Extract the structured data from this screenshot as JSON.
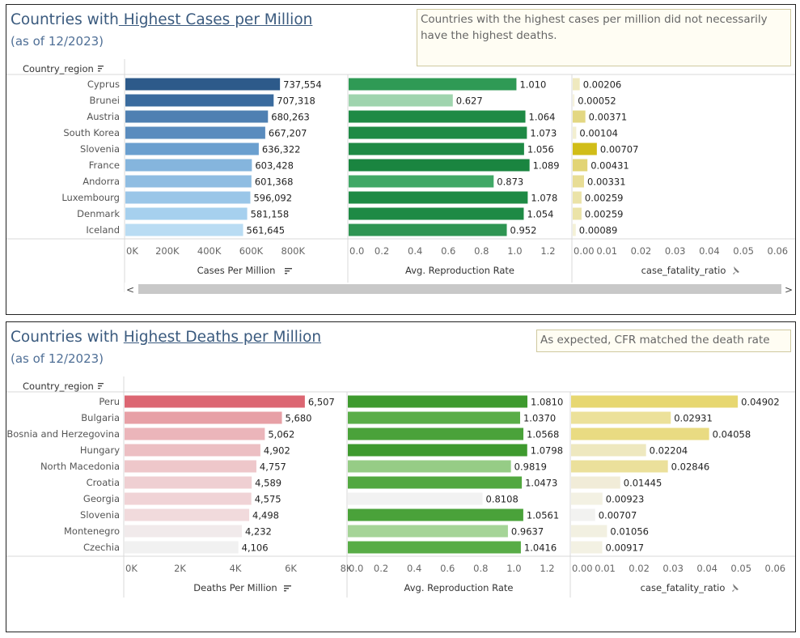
{
  "panels": [
    {
      "title_plain": "Countries with",
      "title_link": " Highest Cases per Million",
      "subtitle": "(as of 12/2023)",
      "note": "Countries with the highest cases per million did not necessarily have the highest deaths.",
      "row_header": "Country_region",
      "scrollbar": {
        "left_arrow": "<",
        "right_arrow": ">"
      }
    },
    {
      "title_plain": "Countries with",
      "title_link": "Highest Deaths per Million",
      "subtitle": "(as of 12/2023)",
      "note": "As expected, CFR matched the death rate",
      "row_header": "Country_region"
    }
  ],
  "chart_data": [
    {
      "type": "bar",
      "orientation": "horizontal",
      "categories": [
        "Cyprus",
        "Brunei",
        "Austria",
        "South Korea",
        "Slovenia",
        "France",
        "Andorra",
        "Luxembourg",
        "Denmark",
        "Iceland"
      ],
      "series": [
        {
          "name": "Cases Per Million",
          "axis_label": "Cases Per Million",
          "values": [
            737554,
            707318,
            680263,
            667207,
            636322,
            603428,
            601368,
            596092,
            581158,
            561645
          ],
          "labels": [
            "737,554",
            "707,318",
            "680,263",
            "667,207",
            "636,322",
            "603,428",
            "601,368",
            "596,092",
            "581,158",
            "561,645"
          ],
          "ticks": [
            "0K",
            "200K",
            "400K",
            "600K",
            "800K"
          ],
          "tick_values": [
            0,
            200000,
            400000,
            600000,
            800000
          ],
          "xlim": [
            0,
            930000
          ],
          "colors": [
            "#2d5a8a",
            "#3a6b9e",
            "#4f80b2",
            "#5a8cbe",
            "#6a9fcf",
            "#85b5dd",
            "#8fbde2",
            "#9ac6e8",
            "#a6d0ee",
            "#b9dcf3"
          ],
          "sort_icon": true
        },
        {
          "name": "Avg. Reproduction Rate",
          "axis_label": "Avg. Reproduction Rate",
          "values": [
            1.01,
            0.627,
            1.064,
            1.073,
            1.056,
            1.089,
            0.873,
            1.078,
            1.054,
            0.952
          ],
          "labels": [
            "1.010",
            "0.627",
            "1.064",
            "1.073",
            "1.056",
            "1.089",
            "0.873",
            "1.078",
            "1.054",
            "0.952"
          ],
          "ticks": [
            "0.0",
            "0.2",
            "0.4",
            "0.6",
            "0.8",
            "1.0",
            "1.2"
          ],
          "tick_values": [
            0,
            0.2,
            0.4,
            0.6,
            0.8,
            1.0,
            1.2
          ],
          "xlim": [
            0,
            1.3
          ],
          "colors": [
            "#2f9a55",
            "#9fd4ae",
            "#1e8a45",
            "#1e8a45",
            "#1e8a45",
            "#1a8540",
            "#40a866",
            "#1e8a45",
            "#1e8a45",
            "#2e9552"
          ]
        },
        {
          "name": "case_fatality_ratio",
          "axis_label": "case_fatality_ratio",
          "values": [
            0.00206,
            0.00052,
            0.00371,
            0.00104,
            0.00707,
            0.00431,
            0.00331,
            0.00259,
            0.00259,
            0.00089
          ],
          "labels": [
            "0.00206",
            "0.00052",
            "0.00371",
            "0.00104",
            "0.00707",
            "0.00431",
            "0.00331",
            "0.00259",
            "0.00259",
            "0.00089"
          ],
          "ticks": [
            "0.00",
            "0.01",
            "0.02",
            "0.03",
            "0.04",
            "0.05",
            "0.06"
          ],
          "tick_values": [
            0,
            0.01,
            0.02,
            0.03,
            0.04,
            0.05,
            0.06
          ],
          "xlim": [
            0,
            0.063
          ],
          "colors": [
            "#efe9bf",
            "#f5f2dc",
            "#e3d782",
            "#f3efd0",
            "#d1bd18",
            "#e2d475",
            "#e8dd95",
            "#ebe3a8",
            "#ebe3a8",
            "#f4f1d6"
          ],
          "pin_icon": true
        }
      ]
    },
    {
      "type": "bar",
      "orientation": "horizontal",
      "categories": [
        "Peru",
        "Bulgaria",
        "Bosnia and Herzegovina",
        "Hungary",
        "North Macedonia",
        "Croatia",
        "Georgia",
        "Slovenia",
        "Montenegro",
        "Czechia"
      ],
      "series": [
        {
          "name": "Deaths Per Million",
          "axis_label": "Deaths Per Million",
          "values": [
            6507,
            5680,
            5062,
            4902,
            4757,
            4589,
            4575,
            4498,
            4232,
            4106
          ],
          "labels": [
            "6,507",
            "5,680",
            "5,062",
            "4,902",
            "4,757",
            "4,589",
            "4,575",
            "4,498",
            "4,232",
            "4,106"
          ],
          "ticks": [
            "0K",
            "2K",
            "4K",
            "6K",
            "8K"
          ],
          "tick_values": [
            0,
            2000,
            4000,
            6000,
            8000
          ],
          "xlim": [
            0,
            8000
          ],
          "colors": [
            "#dc6672",
            "#e7a0a6",
            "#ebb5ba",
            "#ecbfc3",
            "#eec7ca",
            "#efcfd2",
            "#f0d3d6",
            "#f1dadc",
            "#f1eaeb",
            "#f1f1f1"
          ],
          "sort_icon": true
        },
        {
          "name": "Avg. Reproduction Rate",
          "axis_label": "Avg. Reproduction Rate",
          "values": [
            1.081,
            1.037,
            1.0568,
            1.0798,
            0.9819,
            1.0473,
            0.8108,
            1.0561,
            0.9637,
            1.0416
          ],
          "labels": [
            "1.0810",
            "1.0370",
            "1.0568",
            "1.0798",
            "0.9819",
            "1.0473",
            "0.8108",
            "1.0561",
            "0.9637",
            "1.0416"
          ],
          "ticks": [
            "0.0",
            "0.2",
            "0.4",
            "0.6",
            "0.8",
            "1.0",
            "1.2"
          ],
          "tick_values": [
            0,
            0.2,
            0.4,
            0.6,
            0.8,
            1.0,
            1.2
          ],
          "xlim": [
            0,
            1.3
          ],
          "colors": [
            "#3e9a2e",
            "#5aad48",
            "#4aa23a",
            "#3e9a2e",
            "#96cc86",
            "#52a840",
            "#f2f2f2",
            "#4aa23a",
            "#a5d497",
            "#58ac46"
          ]
        },
        {
          "name": "case_fatality_ratio",
          "axis_label": "case_fatality_ratio",
          "values": [
            0.04902,
            0.02931,
            0.04058,
            0.02204,
            0.02846,
            0.01445,
            0.00923,
            0.00707,
            0.01056,
            0.00917
          ],
          "labels": [
            "0.04902",
            "0.02931",
            "0.04058",
            "0.02204",
            "0.02846",
            "0.01445",
            "0.00923",
            "0.00707",
            "0.01056",
            "0.00917"
          ],
          "ticks": [
            "0.00",
            "0.01",
            "0.02",
            "0.03",
            "0.04",
            "0.05",
            "0.06"
          ],
          "tick_values": [
            0,
            0.01,
            0.02,
            0.03,
            0.04,
            0.05,
            0.06
          ],
          "xlim": [
            0,
            0.0635
          ],
          "colors": [
            "#e7d771",
            "#ece19a",
            "#e9db82",
            "#eee8bf",
            "#ebe09b",
            "#f1ecd8",
            "#f3f1e3",
            "#f2f2f0",
            "#f2f0e1",
            "#f3f1e3"
          ],
          "pin_icon": true
        }
      ]
    }
  ]
}
